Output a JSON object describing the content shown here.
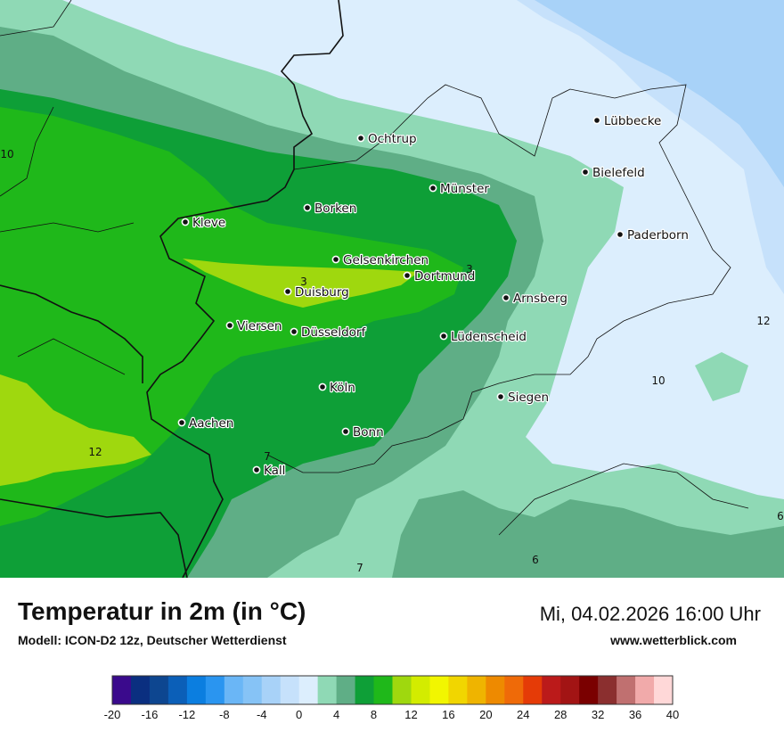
{
  "map": {
    "cities": [
      {
        "name": "Lübbecke"
      },
      {
        "name": "Ochtrup"
      },
      {
        "name": "Bielefeld"
      },
      {
        "name": "Münster"
      },
      {
        "name": "Borken"
      },
      {
        "name": "Kleve"
      },
      {
        "name": "Paderborn"
      },
      {
        "name": "Gelsenkirchen"
      },
      {
        "name": "Dortmund"
      },
      {
        "name": "Duisburg"
      },
      {
        "name": "Arnsberg"
      },
      {
        "name": "Viersen"
      },
      {
        "name": "Düsseldorf"
      },
      {
        "name": "Lüdenscheid"
      },
      {
        "name": "Köln"
      },
      {
        "name": "Siegen"
      },
      {
        "name": "Aachen"
      },
      {
        "name": "Bonn"
      },
      {
        "name": "Kall"
      }
    ],
    "isolines": [
      "10",
      "12",
      "10",
      "3",
      "3",
      "12",
      "7",
      "7",
      "6",
      "6"
    ]
  },
  "footer": {
    "title": "Temperatur in 2m (in °C)",
    "model": "Modell: ICON-D2 12z, Deutscher Wetterdienst",
    "datetime": "Mi, 04.02.2026 16:00 Uhr",
    "website": "www.wetterblick.com"
  },
  "legend": {
    "colors": [
      "#3a0a8c",
      "#0a2f80",
      "#0d4690",
      "#0b5fb8",
      "#0b7ee0",
      "#2a95f0",
      "#6ab6f6",
      "#86c3f6",
      "#a8d2f8",
      "#c6e1fb",
      "#dceefd",
      "#8fd9b5",
      "#5fae86",
      "#0e9f37",
      "#1fb81a",
      "#9fd80e",
      "#d3ec00",
      "#f2f600",
      "#f1d600",
      "#efb400",
      "#ee8a00",
      "#ef6a08",
      "#e53b07",
      "#bb1a1a",
      "#a21414",
      "#7a0000",
      "#8b2f2f",
      "#c07070",
      "#f1aaaa",
      "#ffd8d8"
    ],
    "ticks": [
      "-20",
      "-16",
      "-12",
      "-8",
      "-4",
      "0",
      "4",
      "8",
      "12",
      "16",
      "20",
      "24",
      "28",
      "32",
      "36",
      "40"
    ]
  }
}
